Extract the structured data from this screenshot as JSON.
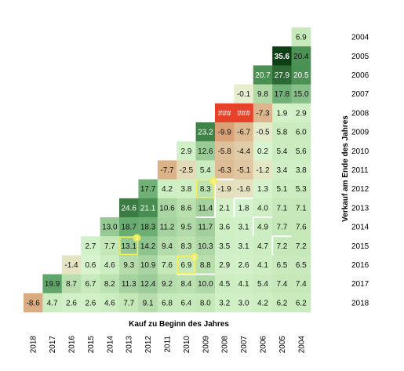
{
  "chart_data": {
    "type": "heatmap",
    "xlabel": "Kauf zu Beginn des Jahres",
    "ylabel": "Verkauf am Ende des Jahres",
    "x_categories": [
      "2018",
      "2017",
      "2016",
      "2015",
      "2014",
      "2013",
      "2012",
      "2011",
      "2010",
      "2009",
      "2008",
      "2007",
      "2006",
      "2005",
      "2004"
    ],
    "y_categories": [
      "2004",
      "2005",
      "2006",
      "2007",
      "2008",
      "2009",
      "2010",
      "2011",
      "2012",
      "2013",
      "2014",
      "2015",
      "2016",
      "2017",
      "2018"
    ],
    "rows": [
      [
        "",
        "",
        "",
        "",
        "",
        "",
        "",
        "",
        "",
        "",
        "",
        "",
        "",
        "",
        "6.9"
      ],
      [
        "",
        "",
        "",
        "",
        "",
        "",
        "",
        "",
        "",
        "",
        "",
        "",
        "",
        "35.6",
        "20.4"
      ],
      [
        "",
        "",
        "",
        "",
        "",
        "",
        "",
        "",
        "",
        "",
        "",
        "",
        "20.7",
        "27.9",
        "20.5"
      ],
      [
        "",
        "",
        "",
        "",
        "",
        "",
        "",
        "",
        "",
        "",
        "",
        "-0.1",
        "9.8",
        "17.8",
        "15.0"
      ],
      [
        "",
        "",
        "",
        "",
        "",
        "",
        "",
        "",
        "",
        "",
        "###",
        "###",
        "-7.3",
        "1.9",
        "2.9"
      ],
      [
        "",
        "",
        "",
        "",
        "",
        "",
        "",
        "",
        "",
        "23.2",
        "-9.9",
        "-6.7",
        "-0.5",
        "5.8",
        "6.0"
      ],
      [
        "",
        "",
        "",
        "",
        "",
        "",
        "",
        "",
        "2.9",
        "12.6",
        "-5.8",
        "-4.4",
        "0.2",
        "5.4",
        "5.6"
      ],
      [
        "",
        "",
        "",
        "",
        "",
        "",
        "",
        "-7.7",
        "-2.5",
        "5.4",
        "-6.3",
        "-5.1",
        "-1.2",
        "3.4",
        "3.8"
      ],
      [
        "",
        "",
        "",
        "",
        "",
        "",
        "17.7",
        "4.2",
        "3.8",
        "8.3",
        "-1.9",
        "-1.6",
        "1.3",
        "5.1",
        "5.3"
      ],
      [
        "",
        "",
        "",
        "",
        "",
        "24.6",
        "21.1",
        "10.6",
        "8.6",
        "11.4",
        "2.1",
        "1.8",
        "4.0",
        "7.1",
        "7.1"
      ],
      [
        "",
        "",
        "",
        "",
        "13.0",
        "18.7",
        "18.3",
        "11.2",
        "9.5",
        "11.7",
        "3.6",
        "3.1",
        "4.9",
        "7.7",
        "7.6"
      ],
      [
        "",
        "",
        "",
        "2.7",
        "7.7",
        "13.1",
        "14.2",
        "9.4",
        "8.3",
        "10.3",
        "3.5",
        "3.1",
        "4.7",
        "7.2",
        "7.2"
      ],
      [
        "",
        "",
        "-1.4",
        "0.6",
        "4.6",
        "9.3",
        "10.9",
        "7.6",
        "6.9",
        "8.8",
        "2.9",
        "2.6",
        "4.1",
        "6.5",
        "6.5"
      ],
      [
        "",
        "19.9",
        "8.7",
        "6.7",
        "8.2",
        "11.3",
        "12.4",
        "9.2",
        "8.4",
        "10.0",
        "4.5",
        "4.1",
        "5.4",
        "7.4",
        "7.4"
      ],
      [
        "-8.6",
        "4.7",
        "2.6",
        "2.6",
        "4.6",
        "7.7",
        "9.1",
        "6.8",
        "6.4",
        "8.0",
        "3.2",
        "3.0",
        "4.2",
        "6.2",
        "6.2"
      ]
    ],
    "markers": [
      {
        "label": "1",
        "row": "2012",
        "col": "2009"
      },
      {
        "label": "2",
        "row": "2015",
        "col": "2013"
      },
      {
        "label": "3",
        "row": "2016",
        "col": "2010"
      }
    ],
    "colors": {
      "negative_strong": "#e8412a",
      "negative_light": "#e3c2a0",
      "neutral": "#d8f5d0",
      "positive_mid": "#8cc78c",
      "positive_strong": "#0a3d12",
      "marker_yellow": "#f3f05a",
      "staircase_line": "#ffffff"
    }
  }
}
